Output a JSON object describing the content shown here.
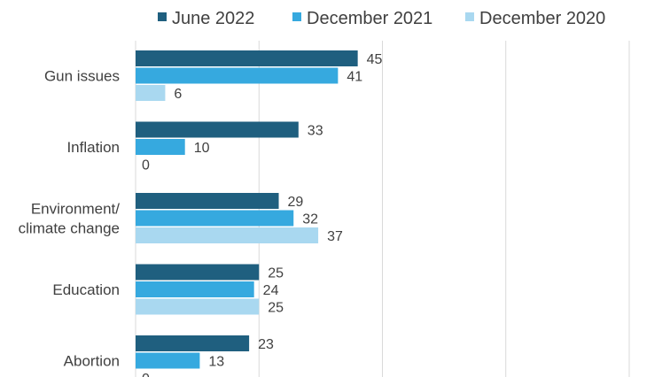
{
  "chart_data": {
    "type": "bar",
    "orientation": "horizontal",
    "categories": [
      [
        "Gun issues"
      ],
      [
        "Inflation"
      ],
      [
        "Environment/",
        "climate change"
      ],
      [
        "Education"
      ],
      [
        "Abortion"
      ]
    ],
    "series": [
      {
        "name": "June 2022",
        "color": "#1f5f7f",
        "values": [
          45,
          33,
          29,
          25,
          23
        ]
      },
      {
        "name": "December 2021",
        "color": "#36a9df",
        "values": [
          41,
          10,
          32,
          24,
          13
        ]
      },
      {
        "name": "December 2020",
        "color": "#a9d8f0",
        "values": [
          6,
          0,
          37,
          25,
          0
        ]
      }
    ],
    "xlim": [
      0,
      100
    ],
    "grid": true,
    "legend_position": "top"
  }
}
